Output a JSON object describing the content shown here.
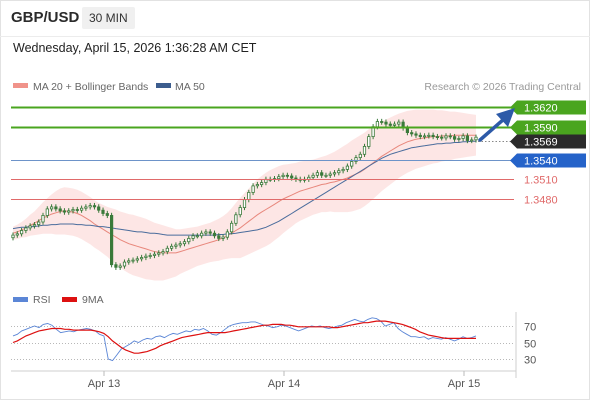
{
  "header": {
    "symbol": "GBP/USD",
    "timeframe": "30 MIN",
    "datetime": "Wednesday, April 15, 2026 1:36:28 AM CET"
  },
  "legend": {
    "ma20": "MA 20 + Bollinger Bands",
    "ma50": "MA 50",
    "credit": "Research © 2026 Trading Central"
  },
  "colors": {
    "candle": "#3a7a3a",
    "ma20": "#e8877c",
    "ma50": "#4a6c9c",
    "band_fill": "#fde2e0",
    "resistance": "#4aa51f",
    "pivot": "#2563c9",
    "support": "#e06a6a",
    "rsi": "#5b86d6",
    "rsi_ma": "#dd1111",
    "arrow": "#2d5aa8",
    "current_tag": "#2b2b2b"
  },
  "chart_data": [
    {
      "type": "candlestick",
      "x_labels": [
        "Apr 13",
        "Apr 14",
        "Apr 15"
      ],
      "ylim": [
        1.343,
        1.3645
      ],
      "levels": [
        {
          "value": 1.362,
          "label": "1.3620",
          "kind": "resistance"
        },
        {
          "value": 1.359,
          "label": "1.3590",
          "kind": "resistance"
        },
        {
          "value": 1.3569,
          "label": "1.3569",
          "kind": "current"
        },
        {
          "value": 1.354,
          "label": "1.3540",
          "kind": "pivot"
        },
        {
          "value": 1.351,
          "label": "1.3510",
          "kind": "support"
        },
        {
          "value": 1.348,
          "label": "1.3480",
          "kind": "support"
        }
      ],
      "close": [
        1.3425,
        1.3427,
        1.3432,
        1.3436,
        1.3439,
        1.3441,
        1.3445,
        1.3455,
        1.3465,
        1.3468,
        1.3465,
        1.3462,
        1.346,
        1.3462,
        1.3464,
        1.3463,
        1.3466,
        1.3468,
        1.347,
        1.3468,
        1.3463,
        1.3458,
        1.3455,
        1.338,
        1.3376,
        1.3378,
        1.3384,
        1.3386,
        1.3387,
        1.3389,
        1.3391,
        1.3393,
        1.3394,
        1.3396,
        1.3398,
        1.34,
        1.3405,
        1.3408,
        1.341,
        1.3412,
        1.3415,
        1.342,
        1.3424,
        1.3424,
        1.3428,
        1.343,
        1.3428,
        1.3424,
        1.342,
        1.3422,
        1.343,
        1.3443,
        1.3456,
        1.3467,
        1.3479,
        1.349,
        1.35,
        1.3502,
        1.3505,
        1.351,
        1.351,
        1.3511,
        1.3514,
        1.3516,
        1.3515,
        1.3512,
        1.351,
        1.3509,
        1.351,
        1.3513,
        1.3516,
        1.352,
        1.3516,
        1.3516,
        1.3518,
        1.352,
        1.3523,
        1.3525,
        1.353,
        1.3537,
        1.3543,
        1.3548,
        1.356,
        1.3575,
        1.359,
        1.3598,
        1.3597,
        1.3594,
        1.3592,
        1.3594,
        1.3597,
        1.3588,
        1.3581,
        1.3579,
        1.3577,
        1.3575,
        1.3576,
        1.3577,
        1.3575,
        1.3574,
        1.3573,
        1.3576,
        1.3575,
        1.3571,
        1.3572,
        1.3576,
        1.3569,
        1.357,
        1.3574
      ],
      "ma20": [
        1.3428,
        1.343,
        1.3433,
        1.3436,
        1.344,
        1.3443,
        1.3447,
        1.3451,
        1.3454,
        1.3457,
        1.3459,
        1.3461,
        1.3462,
        1.3461,
        1.346,
        1.3458,
        1.3455,
        1.3451,
        1.3447,
        1.3442,
        1.3438,
        1.3434,
        1.343,
        1.3426,
        1.3422,
        1.3418,
        1.3415,
        1.3412,
        1.341,
        1.3408,
        1.3406,
        1.3404,
        1.3402,
        1.34,
        1.3399,
        1.3398,
        1.3398,
        1.3398,
        1.3398,
        1.34,
        1.3402,
        1.3404,
        1.3406,
        1.3408,
        1.341,
        1.3412,
        1.3414,
        1.3416,
        1.3418,
        1.3421,
        1.3424,
        1.3428,
        1.3432,
        1.3436,
        1.3441,
        1.3446,
        1.3451,
        1.3456,
        1.346,
        1.3464,
        1.3468,
        1.3472,
        1.3476,
        1.348,
        1.3483,
        1.3486,
        1.3489,
        1.3492,
        1.3494,
        1.3496,
        1.3498,
        1.35,
        1.3502,
        1.3503,
        1.3505,
        1.3506,
        1.3508,
        1.351,
        1.3512,
        1.3515,
        1.3518,
        1.3521,
        1.3525,
        1.353,
        1.3535,
        1.354,
        1.3545,
        1.3549,
        1.3553,
        1.3557,
        1.3561,
        1.3564,
        1.3567,
        1.3569,
        1.3571,
        1.3572,
        1.3573,
        1.3574,
        1.3575,
        1.3575,
        1.3576,
        1.3576,
        1.3576,
        1.3577,
        1.3577,
        1.3577,
        1.3577,
        1.3577,
        1.3577
      ],
      "ma50": [
        1.3435,
        1.3436,
        1.3437,
        1.3437,
        1.3438,
        1.3438,
        1.3439,
        1.344,
        1.344,
        1.3441,
        1.3441,
        1.3442,
        1.3442,
        1.3442,
        1.3442,
        1.3441,
        1.3441,
        1.344,
        1.344,
        1.3439,
        1.3438,
        1.3438,
        1.3437,
        1.3436,
        1.3435,
        1.3434,
        1.3433,
        1.3432,
        1.3431,
        1.343,
        1.343,
        1.3429,
        1.3428,
        1.3428,
        1.3427,
        1.3426,
        1.3425,
        1.3425,
        1.3425,
        1.3425,
        1.3425,
        1.3425,
        1.3425,
        1.3425,
        1.3425,
        1.3425,
        1.3425,
        1.3425,
        1.3426,
        1.3426,
        1.3427,
        1.3427,
        1.3428,
        1.3429,
        1.343,
        1.3431,
        1.3432,
        1.3433,
        1.3435,
        1.3437,
        1.344,
        1.3443,
        1.3446,
        1.345,
        1.3454,
        1.3458,
        1.3462,
        1.3466,
        1.347,
        1.3474,
        1.3478,
        1.3482,
        1.3486,
        1.349,
        1.3494,
        1.3498,
        1.3502,
        1.3506,
        1.351,
        1.3514,
        1.3518,
        1.3522,
        1.3526,
        1.353,
        1.3534,
        1.3538,
        1.3542,
        1.3545,
        1.3548,
        1.355,
        1.3552,
        1.3554,
        1.3556,
        1.3558,
        1.3559,
        1.356,
        1.3561,
        1.3562,
        1.3563,
        1.3564,
        1.3564,
        1.3565,
        1.3565,
        1.3566,
        1.3566,
        1.3567,
        1.3567,
        1.3568,
        1.3568
      ],
      "band_width": [
        0.001,
        0.0011,
        0.0012,
        0.0014,
        0.0016,
        0.0018,
        0.0021,
        0.0024,
        0.0027,
        0.003,
        0.0033,
        0.0035,
        0.0036,
        0.0036,
        0.0036,
        0.0036,
        0.0036,
        0.0036,
        0.0036,
        0.0036,
        0.0036,
        0.0037,
        0.0038,
        0.004,
        0.0042,
        0.0043,
        0.0044,
        0.0045,
        0.0046,
        0.0046,
        0.0046,
        0.0046,
        0.0045,
        0.0044,
        0.0043,
        0.0042,
        0.004,
        0.0038,
        0.0036,
        0.0034,
        0.0033,
        0.0032,
        0.0031,
        0.003,
        0.003,
        0.003,
        0.003,
        0.0031,
        0.0032,
        0.0033,
        0.0035,
        0.0038,
        0.0042,
        0.0046,
        0.0048,
        0.005,
        0.0052,
        0.0054,
        0.0055,
        0.0056,
        0.0056,
        0.0055,
        0.0054,
        0.0052,
        0.005,
        0.0048,
        0.0046,
        0.0045,
        0.0044,
        0.0043,
        0.0042,
        0.0042,
        0.0042,
        0.0043,
        0.0044,
        0.0046,
        0.0048,
        0.005,
        0.0052,
        0.0054,
        0.0055,
        0.0056,
        0.0056,
        0.0056,
        0.0055,
        0.0054,
        0.0053,
        0.0052,
        0.0051,
        0.005,
        0.0049,
        0.0048,
        0.0047,
        0.0046,
        0.0045,
        0.0044,
        0.0043,
        0.0042,
        0.0041,
        0.004,
        0.0039,
        0.0038,
        0.0037,
        0.0036,
        0.0035,
        0.0034,
        0.0033,
        0.0032,
        0.0031
      ]
    },
    {
      "type": "line",
      "legend": [
        "RSI",
        "9MA"
      ],
      "y_ticks": [
        "70",
        "50",
        "30"
      ],
      "ylim": [
        20,
        85
      ],
      "series": [
        {
          "name": "RSI",
          "values": [
            58,
            60,
            64,
            66,
            68,
            70,
            68,
            72,
            73,
            71,
            66,
            62,
            63,
            64,
            63,
            65,
            66,
            67,
            66,
            64,
            60,
            58,
            30,
            28,
            35,
            42,
            45,
            48,
            52,
            50,
            53,
            55,
            54,
            57,
            58,
            56,
            59,
            61,
            60,
            62,
            64,
            63,
            66,
            65,
            67,
            64,
            60,
            59,
            62,
            66,
            70,
            72,
            73,
            74,
            74,
            75,
            75,
            73,
            71,
            70,
            68,
            69,
            71,
            70,
            68,
            66,
            64,
            66,
            68,
            70,
            69,
            70,
            68,
            67,
            68,
            70,
            71,
            74,
            76,
            78,
            76,
            75,
            78,
            80,
            79,
            76,
            70,
            72,
            74,
            67,
            63,
            60,
            57,
            57,
            56,
            57,
            54,
            56,
            55,
            54,
            56,
            54,
            52,
            54,
            57,
            55,
            56,
            58
          ]
        },
        {
          "name": "9MA",
          "values": [
            50,
            52,
            55,
            58,
            60,
            62,
            64,
            65,
            66,
            67,
            67,
            67,
            66,
            66,
            65,
            65,
            65,
            65,
            65,
            64,
            63,
            61,
            57,
            52,
            48,
            44,
            41,
            39,
            37,
            37,
            38,
            39,
            41,
            43,
            46,
            48,
            50,
            52,
            54,
            56,
            57,
            58,
            59,
            60,
            61,
            62,
            62,
            62,
            62,
            62,
            63,
            64,
            65,
            66,
            67,
            68,
            69,
            70,
            71,
            71,
            72,
            72,
            72,
            71,
            71,
            70,
            69,
            69,
            69,
            69,
            69,
            69,
            69,
            69,
            68,
            68,
            69,
            70,
            71,
            72,
            73,
            74,
            74,
            75,
            76,
            76,
            76,
            75,
            74,
            73,
            72,
            70,
            68,
            66,
            63,
            61,
            59,
            58,
            57,
            56,
            55,
            55,
            55,
            55,
            55,
            55,
            55,
            55
          ]
        }
      ]
    }
  ]
}
